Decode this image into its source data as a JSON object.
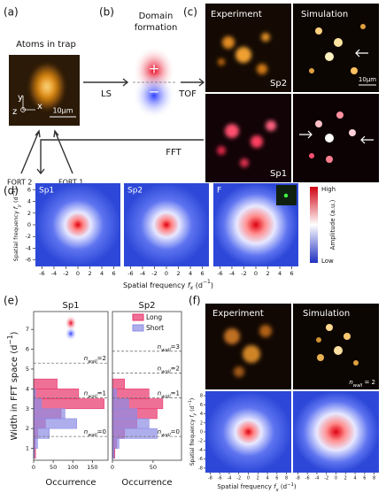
{
  "panel_a": {
    "label": "(a)",
    "title": "Atoms in trap",
    "axes": [
      "y",
      "x",
      "z"
    ],
    "scale_bar": "10μm",
    "beams": [
      "FORT 2",
      "FORT 1"
    ]
  },
  "panel_b": {
    "label": "(b)",
    "title": [
      "Domain",
      "formation"
    ],
    "plus": "+",
    "minus": "−",
    "arrows": [
      "LS",
      "TOF"
    ]
  },
  "panel_c": {
    "label": "(c)",
    "columns": [
      "Experiment",
      "Simulation"
    ],
    "rows": [
      "Sp2",
      "Sp1"
    ],
    "scale_bar": "10μm",
    "fft": "FFT"
  },
  "panel_d": {
    "label": "(d)",
    "maps": [
      "Sp1",
      "Sp2",
      "F"
    ],
    "xlim": [
      -7.1,
      7.1
    ],
    "ylim": [
      -7.1,
      7.1
    ],
    "xticks": [
      -6,
      -4,
      -2,
      0,
      2,
      4,
      6
    ],
    "yticks": [
      -6,
      -4,
      -2,
      0,
      2,
      4,
      6
    ],
    "x_label": {
      "text": "Spatial frequency ",
      "var": "f",
      "sub": "x",
      "open": " (d",
      "sup": "−1",
      "close": ")"
    },
    "y_label": {
      "text": "Spatial frequency ",
      "var": "f",
      "sub": "y",
      "open": " (d",
      "sup": "−1",
      "close": ")"
    },
    "colorbar": {
      "high": "High",
      "low": "Low",
      "label": "Amplitude (a.u.)"
    }
  },
  "panel_e": {
    "label": "(e)",
    "ylim": [
      0.4,
      7.9
    ],
    "yticks": [
      1,
      2,
      3,
      4,
      5,
      6,
      7
    ],
    "y_label": {
      "text": "Width in FFT space ",
      "open": "(d",
      "sup": "−1",
      "close": ")"
    },
    "x_label": "Occurrence",
    "bins": [
      0.5,
      1.0,
      1.5,
      2.0,
      2.5,
      3.0,
      3.5,
      4.0,
      4.5
    ],
    "legend": [
      "Long",
      "Short"
    ],
    "colors": [
      "#e8336b",
      "#8c8ce6"
    ],
    "charts": [
      {
        "title": "Sp1",
        "xlim": [
          0,
          190
        ],
        "xticks": [
          0,
          50,
          100,
          150
        ],
        "long": [
          5,
          4,
          10,
          30,
          70,
          180,
          115,
          60
        ],
        "short": [
          2,
          10,
          40,
          110,
          80,
          20,
          5,
          0
        ],
        "lines": [
          {
            "value": 1.6,
            "label": {
              "var": "n",
              "sub": "wall",
              "eq": "=0"
            }
          },
          {
            "value": 3.55,
            "label": {
              "var": "n",
              "sub": "wall",
              "eq": "=1"
            }
          },
          {
            "value": 5.3,
            "label": {
              "var": "n",
              "sub": "wall",
              "eq": "=2"
            }
          }
        ]
      },
      {
        "title": "Sp2",
        "xlim": [
          0,
          85
        ],
        "xticks": [
          0,
          50
        ],
        "long": [
          3,
          5,
          15,
          30,
          55,
          62,
          45,
          15
        ],
        "short": [
          2,
          8,
          55,
          45,
          30,
          20,
          5,
          0
        ],
        "lines": [
          {
            "value": 1.6,
            "label": {
              "var": "n",
              "sub": "wall",
              "eq": "=0"
            }
          },
          {
            "value": 3.55,
            "label": {
              "var": "n",
              "sub": "wall",
              "eq": "=1"
            }
          },
          {
            "value": 4.8,
            "label": {
              "var": "n",
              "sub": "wall",
              "eq": "=2"
            }
          },
          {
            "value": 5.9,
            "label": {
              "var": "n",
              "sub": "wall",
              "eq": "=3"
            }
          }
        ]
      }
    ]
  },
  "panel_f": {
    "label": "(f)",
    "columns": [
      "Experiment",
      "Simulation"
    ],
    "annotation": {
      "var": "n",
      "sub": "wall",
      "eq": " = 2"
    },
    "xlim": [
      -9,
      9
    ],
    "ylim": [
      -9,
      9
    ],
    "xticks": [
      -8,
      -6,
      -4,
      -2,
      0,
      2,
      4,
      6,
      8
    ],
    "yticks": [
      -8,
      -6,
      -4,
      -2,
      0,
      2,
      4,
      6,
      8
    ],
    "x_label": {
      "text": "Spatial frequency ",
      "var": "f",
      "sub": "x",
      "open": " (d",
      "sup": "−1",
      "close": ")"
    },
    "y_label": {
      "text": "Spatial frequency ",
      "var": "f",
      "sub": "y",
      "open": " (d",
      "sup": "−1",
      "close": ")"
    }
  }
}
